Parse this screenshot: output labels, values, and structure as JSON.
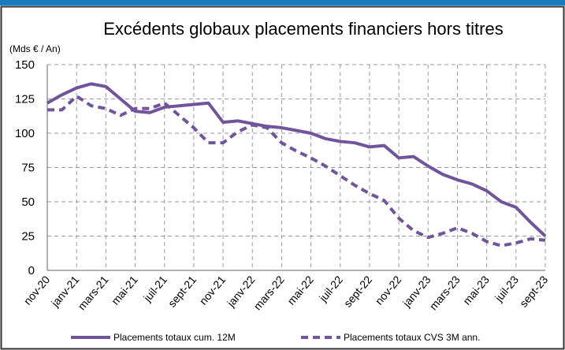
{
  "chart_data": {
    "type": "line",
    "title": "Excédents globaux placements financiers hors titres",
    "y_label": "(Mds € / An)",
    "categories": [
      "nov-20",
      null,
      "janv-21",
      null,
      "mars-21",
      null,
      "mai-21",
      null,
      "juil-21",
      null,
      "sept-21",
      null,
      "nov-21",
      null,
      "janv-22",
      null,
      "mars-22",
      null,
      "mai-22",
      null,
      "juil-22",
      null,
      "sept-22",
      null,
      "nov-22",
      null,
      "janv-23",
      null,
      "mars-23",
      null,
      "mai-23",
      null,
      "juil-23",
      null,
      "sept-23"
    ],
    "series": [
      {
        "name": "Placements totaux cum. 12M",
        "color": "#70549c",
        "dash": false,
        "values": [
          122,
          128,
          133,
          136,
          134,
          125,
          116,
          115,
          119,
          120,
          121,
          122,
          108,
          109,
          107,
          105,
          104,
          102,
          100,
          96,
          94,
          93,
          90,
          91,
          82,
          83,
          76,
          70,
          66,
          63,
          58,
          50,
          46,
          35,
          25
        ]
      },
      {
        "name": "Placements totaux CVS 3M ann.",
        "color": "#70549c",
        "dash": true,
        "values": [
          117,
          117,
          127,
          120,
          118,
          113,
          118,
          118,
          122,
          113,
          104,
          93,
          93,
          101,
          106,
          104,
          93,
          87,
          82,
          76,
          69,
          62,
          56,
          51,
          38,
          29,
          24,
          27,
          31,
          27,
          21,
          18,
          20,
          23,
          22
        ]
      }
    ],
    "ylim": [
      0,
      150
    ],
    "yticks": [
      0,
      25,
      50,
      75,
      100,
      125,
      150
    ],
    "grid": true,
    "legend": "bottom"
  }
}
